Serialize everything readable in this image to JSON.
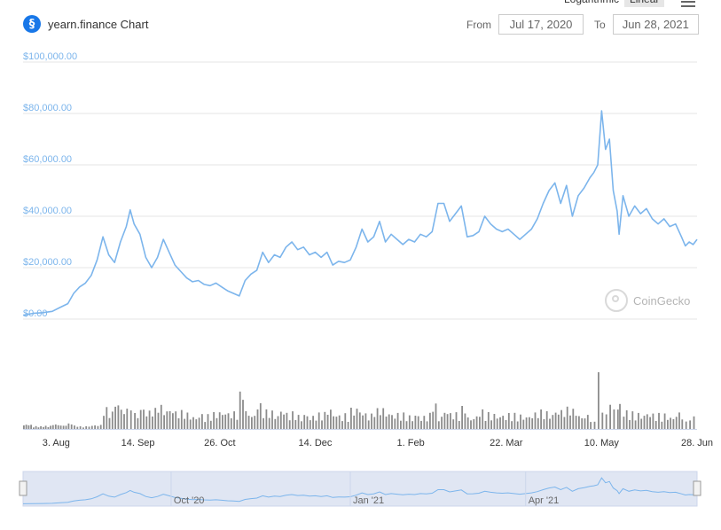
{
  "header": {
    "title": "yearn.finance Chart",
    "logo_icon": "yearn-finance-logo-icon",
    "scale_options": [
      "Logarithmic",
      "Linear"
    ],
    "scale_selected": "Linear",
    "menu_icon": "hamburger-menu-icon",
    "from_label": "From",
    "from_value": "Jul 17, 2020",
    "to_label": "To",
    "to_value": "Jun 28, 2021"
  },
  "watermark": {
    "text": "CoinGecko",
    "icon": "coingecko-logo-icon"
  },
  "colors": {
    "line": "#7cb5ec",
    "volume": "#8c8c8c",
    "axis_label": "#7cb5ec",
    "navigator_fill": "#e0e6f3"
  },
  "chart_data": {
    "type": "line",
    "title": "yearn.finance Chart",
    "xlabel": "",
    "ylabel": "",
    "x_start": "2020-07-17",
    "x_end": "2021-06-28",
    "ylim": [
      0,
      100000
    ],
    "y_ticks": [
      "$0.00",
      "$20,000.00",
      "$40,000.00",
      "$60,000.00",
      "$80,000.00",
      "$100,000.00"
    ],
    "y_tick_values": [
      0,
      20000,
      40000,
      60000,
      80000,
      100000
    ],
    "x_ticks": [
      {
        "date": "2020-08-03",
        "label": "3. Aug"
      },
      {
        "date": "2020-09-14",
        "label": "14. Sep"
      },
      {
        "date": "2020-10-26",
        "label": "26. Oct"
      },
      {
        "date": "2020-12-14",
        "label": "14. Dec"
      },
      {
        "date": "2021-02-01",
        "label": "1. Feb"
      },
      {
        "date": "2021-03-22",
        "label": "22. Mar"
      },
      {
        "date": "2021-05-10",
        "label": "10. May"
      },
      {
        "date": "2021-06-28",
        "label": "28. Jun"
      }
    ],
    "grid": true,
    "series": [
      {
        "points": [
          [
            "2020-07-17",
            1500
          ],
          [
            "2020-07-22",
            2200
          ],
          [
            "2020-07-27",
            2500
          ],
          [
            "2020-08-01",
            3000
          ],
          [
            "2020-08-05",
            4500
          ],
          [
            "2020-08-09",
            6000
          ],
          [
            "2020-08-12",
            10000
          ],
          [
            "2020-08-15",
            12500
          ],
          [
            "2020-08-18",
            14000
          ],
          [
            "2020-08-21",
            17000
          ],
          [
            "2020-08-24",
            23000
          ],
          [
            "2020-08-27",
            32000
          ],
          [
            "2020-08-30",
            25000
          ],
          [
            "2020-09-02",
            22000
          ],
          [
            "2020-09-05",
            30000
          ],
          [
            "2020-09-08",
            36000
          ],
          [
            "2020-09-10",
            42500
          ],
          [
            "2020-09-12",
            37000
          ],
          [
            "2020-09-15",
            33000
          ],
          [
            "2020-09-18",
            24000
          ],
          [
            "2020-09-21",
            20000
          ],
          [
            "2020-09-24",
            24000
          ],
          [
            "2020-09-27",
            31000
          ],
          [
            "2020-09-30",
            26000
          ],
          [
            "2020-10-03",
            21000
          ],
          [
            "2020-10-06",
            18500
          ],
          [
            "2020-10-09",
            16000
          ],
          [
            "2020-10-12",
            14500
          ],
          [
            "2020-10-15",
            15000
          ],
          [
            "2020-10-18",
            13500
          ],
          [
            "2020-10-21",
            13000
          ],
          [
            "2020-10-24",
            14000
          ],
          [
            "2020-10-27",
            12500
          ],
          [
            "2020-10-30",
            11000
          ],
          [
            "2020-11-02",
            10000
          ],
          [
            "2020-11-05",
            9000
          ],
          [
            "2020-11-08",
            15000
          ],
          [
            "2020-11-11",
            17500
          ],
          [
            "2020-11-14",
            19000
          ],
          [
            "2020-11-17",
            26000
          ],
          [
            "2020-11-20",
            22000
          ],
          [
            "2020-11-23",
            25000
          ],
          [
            "2020-11-26",
            24000
          ],
          [
            "2020-11-29",
            28000
          ],
          [
            "2020-12-02",
            30000
          ],
          [
            "2020-12-05",
            27000
          ],
          [
            "2020-12-08",
            28000
          ],
          [
            "2020-12-11",
            25000
          ],
          [
            "2020-12-14",
            26000
          ],
          [
            "2020-12-17",
            24000
          ],
          [
            "2020-12-20",
            26000
          ],
          [
            "2020-12-23",
            21000
          ],
          [
            "2020-12-26",
            22500
          ],
          [
            "2020-12-29",
            22000
          ],
          [
            "2021-01-01",
            23000
          ],
          [
            "2021-01-04",
            28000
          ],
          [
            "2021-01-07",
            35000
          ],
          [
            "2021-01-10",
            30000
          ],
          [
            "2021-01-13",
            32000
          ],
          [
            "2021-01-16",
            38000
          ],
          [
            "2021-01-19",
            30000
          ],
          [
            "2021-01-22",
            33000
          ],
          [
            "2021-01-25",
            31000
          ],
          [
            "2021-01-28",
            29000
          ],
          [
            "2021-01-31",
            31000
          ],
          [
            "2021-02-03",
            30000
          ],
          [
            "2021-02-06",
            33000
          ],
          [
            "2021-02-09",
            32000
          ],
          [
            "2021-02-12",
            34000
          ],
          [
            "2021-02-15",
            45000
          ],
          [
            "2021-02-18",
            45000
          ],
          [
            "2021-02-21",
            38000
          ],
          [
            "2021-02-24",
            41000
          ],
          [
            "2021-02-27",
            44000
          ],
          [
            "2021-03-02",
            32000
          ],
          [
            "2021-03-05",
            32500
          ],
          [
            "2021-03-08",
            34000
          ],
          [
            "2021-03-11",
            40000
          ],
          [
            "2021-03-14",
            37000
          ],
          [
            "2021-03-17",
            35000
          ],
          [
            "2021-03-20",
            34000
          ],
          [
            "2021-03-23",
            35000
          ],
          [
            "2021-03-26",
            33000
          ],
          [
            "2021-03-29",
            31000
          ],
          [
            "2021-04-01",
            33000
          ],
          [
            "2021-04-04",
            35000
          ],
          [
            "2021-04-07",
            39000
          ],
          [
            "2021-04-10",
            45000
          ],
          [
            "2021-04-13",
            50000
          ],
          [
            "2021-04-16",
            53000
          ],
          [
            "2021-04-19",
            45000
          ],
          [
            "2021-04-22",
            52000
          ],
          [
            "2021-04-25",
            40000
          ],
          [
            "2021-04-28",
            48000
          ],
          [
            "2021-05-01",
            51000
          ],
          [
            "2021-05-04",
            55000
          ],
          [
            "2021-05-06",
            57000
          ],
          [
            "2021-05-08",
            60000
          ],
          [
            "2021-05-10",
            81000
          ],
          [
            "2021-05-12",
            66000
          ],
          [
            "2021-05-14",
            70000
          ],
          [
            "2021-05-16",
            50000
          ],
          [
            "2021-05-18",
            42000
          ],
          [
            "2021-05-19",
            33000
          ],
          [
            "2021-05-21",
            48000
          ],
          [
            "2021-05-24",
            40000
          ],
          [
            "2021-05-27",
            44000
          ],
          [
            "2021-05-30",
            41000
          ],
          [
            "2021-06-02",
            43000
          ],
          [
            "2021-06-05",
            39000
          ],
          [
            "2021-06-08",
            37000
          ],
          [
            "2021-06-11",
            39000
          ],
          [
            "2021-06-14",
            36000
          ],
          [
            "2021-06-17",
            37000
          ],
          [
            "2021-06-20",
            32000
          ],
          [
            "2021-06-22",
            28500
          ],
          [
            "2021-06-24",
            30000
          ],
          [
            "2021-06-26",
            29000
          ],
          [
            "2021-06-28",
            31000
          ]
        ]
      }
    ],
    "navigator_labels": [
      "Oct '20",
      "Jan '21",
      "Apr '21"
    ]
  }
}
